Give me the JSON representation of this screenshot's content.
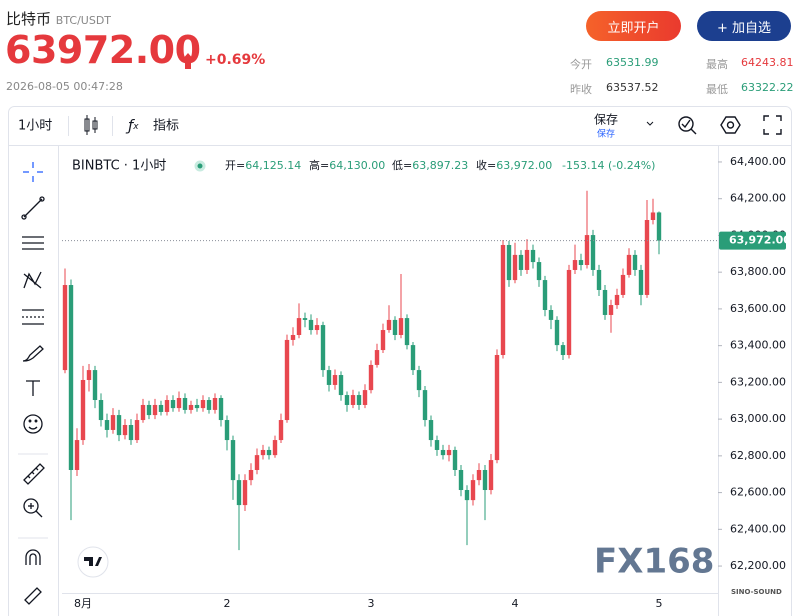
{
  "header": {
    "name": "比特币",
    "pair": "BTC/USDT",
    "price": "63972.00",
    "change": "+0.69%",
    "time": "2026-08-05 00:47:28",
    "buttons": [
      "立即开户",
      "+ 加自选"
    ],
    "stats": [
      {
        "label": "今开",
        "value": "63531.99"
      },
      {
        "label": "最高",
        "value": "64243.81"
      },
      {
        "label": "昨收",
        "value": "63537.52"
      },
      {
        "label": "最低",
        "value": "63322.22"
      }
    ]
  },
  "toolbar": {
    "interval": "1小时",
    "indicators": "指标",
    "save": "保存",
    "save_sub": "保存"
  },
  "chart_data": {
    "type": "candlestick",
    "symbol": "BINBTC · 1小时",
    "legend_info": [
      {
        "label": "开=",
        "value": "64,125.14"
      },
      {
        "label": "高=",
        "value": "64,130.00"
      },
      {
        "label": "低=",
        "value": "63,897.23"
      },
      {
        "label": "收=",
        "value": "63,972.00"
      }
    ],
    "legend_change": "-153.14 (-0.24%)",
    "up_color": "#e8474f",
    "down_color": "#2a9d78",
    "categories": [
      null,
      null,
      null,
      "8月",
      null,
      null,
      null,
      null,
      null,
      null,
      null,
      null,
      null,
      null,
      null,
      null,
      null,
      null,
      null,
      null,
      null,
      null,
      null,
      null,
      null,
      null,
      null,
      "2",
      null,
      null,
      null,
      null,
      null,
      null,
      null,
      null,
      null,
      null,
      null,
      null,
      null,
      null,
      null,
      null,
      null,
      null,
      null,
      null,
      null,
      null,
      null,
      "3",
      null,
      null,
      null,
      null,
      null,
      null,
      null,
      null,
      null,
      null,
      null,
      null,
      null,
      null,
      null,
      null,
      null,
      null,
      null,
      null,
      null,
      null,
      null,
      "4",
      null,
      null,
      null,
      null,
      null,
      null,
      null,
      null,
      null,
      null,
      null,
      null,
      null,
      null,
      null,
      null,
      null,
      null,
      null,
      null,
      null,
      null,
      null,
      "5"
    ],
    "open": [
      63267,
      63730,
      62723,
      62886,
      63213,
      63267,
      63104,
      62995,
      62941,
      63022,
      62913,
      62968,
      62886,
      62995,
      63077,
      63022,
      63077,
      63039,
      63104,
      63060,
      63115,
      63050,
      63077,
      63060,
      63104,
      63050,
      63115,
      62995,
      62886,
      62668,
      62532,
      62668,
      62723,
      62804,
      62832,
      62804,
      62886,
      62995,
      63431,
      63458,
      63550,
      63540,
      63485,
      63512,
      63267,
      63186,
      63240,
      63131,
      63077,
      63131,
      63077,
      63158,
      63295,
      63376,
      63485,
      63540,
      63458,
      63550,
      63403,
      63267,
      63158,
      62995,
      62886,
      62832,
      62804,
      62832,
      62723,
      62614,
      62559,
      62668,
      62723,
      62614,
      62777,
      63349,
      63948,
      63757,
      63894,
      63812,
      63921,
      63855,
      63757,
      63594,
      63540,
      63403,
      63349,
      63812,
      63866,
      63839,
      64002,
      63812,
      63703,
      63567,
      63621,
      63676,
      63785,
      63894,
      63812,
      63676,
      64084,
      64125.14
    ],
    "high": [
      63820,
      63760,
      62950,
      63290,
      63300,
      63290,
      63140,
      63030,
      63060,
      63050,
      63000,
      63000,
      63030,
      63110,
      63100,
      63110,
      63100,
      63130,
      63130,
      63150,
      63140,
      63100,
      63110,
      63130,
      63120,
      63140,
      63130,
      63020,
      62910,
      62700,
      62700,
      62760,
      62840,
      62860,
      62850,
      62910,
      63030,
      63460,
      63500,
      63630,
      63580,
      63570,
      63550,
      63530,
      63290,
      63270,
      63260,
      63150,
      63160,
      63150,
      63190,
      63320,
      63410,
      63520,
      63620,
      63560,
      63790,
      63570,
      63420,
      63290,
      63180,
      63020,
      62910,
      62860,
      62860,
      62850,
      62750,
      62640,
      62700,
      62760,
      62750,
      62810,
      63380,
      63975,
      63970,
      63960,
      63920,
      63980,
      63950,
      63880,
      63780,
      63620,
      63560,
      63420,
      63840,
      63950,
      63900,
      64243,
      64030,
      63840,
      63730,
      63650,
      63710,
      63820,
      63930,
      63920,
      63840,
      64193,
      64200,
      64130.0
    ],
    "low": [
      63250,
      62450,
      62690,
      62860,
      63150,
      63060,
      62960,
      62900,
      62920,
      62880,
      62890,
      62860,
      62870,
      62980,
      63000,
      63000,
      63020,
      63020,
      63040,
      63040,
      63030,
      63030,
      63040,
      63040,
      63030,
      63030,
      62960,
      62830,
      62560,
      62287,
      62500,
      62640,
      62700,
      62780,
      62780,
      62790,
      62870,
      62980,
      63400,
      63440,
      63500,
      63460,
      63460,
      63230,
      63150,
      63160,
      63100,
      63040,
      63060,
      63050,
      63060,
      63140,
      63280,
      63360,
      63470,
      63430,
      63440,
      63380,
      63240,
      63120,
      62960,
      62850,
      62800,
      62780,
      62770,
      62690,
      62580,
      62314,
      62530,
      62640,
      62450,
      62590,
      62760,
      63330,
      63720,
      63740,
      63780,
      63790,
      63820,
      63720,
      63560,
      63490,
      63370,
      63322,
      63330,
      63790,
      63810,
      63820,
      63780,
      63670,
      63540,
      63470,
      63600,
      63660,
      63770,
      63780,
      63620,
      63660,
      64060,
      63897.23
    ],
    "close": [
      63730,
      62723,
      62886,
      63213,
      63267,
      63104,
      62995,
      62941,
      63022,
      62913,
      62968,
      62886,
      62995,
      63077,
      63022,
      63077,
      63039,
      63104,
      63060,
      63115,
      63050,
      63077,
      63060,
      63104,
      63050,
      63115,
      62995,
      62886,
      62668,
      62532,
      62668,
      62723,
      62804,
      62832,
      62804,
      62886,
      62995,
      63431,
      63458,
      63550,
      63540,
      63485,
      63512,
      63267,
      63186,
      63240,
      63131,
      63077,
      63131,
      63077,
      63158,
      63295,
      63376,
      63485,
      63540,
      63458,
      63550,
      63403,
      63267,
      63158,
      62995,
      62886,
      62832,
      62804,
      62832,
      62723,
      62614,
      62559,
      62668,
      62723,
      62614,
      62777,
      63349,
      63948,
      63757,
      63894,
      63812,
      63921,
      63855,
      63757,
      63594,
      63540,
      63403,
      63349,
      63812,
      63866,
      63839,
      64002,
      63812,
      63703,
      63567,
      63621,
      63676,
      63785,
      63894,
      63812,
      63676,
      64084,
      64125,
      63972.0
    ],
    "ylim": [
      62037,
      64476
    ],
    "yticks": [
      {
        "value": 62200,
        "label": "62,200.00"
      },
      {
        "value": 62400,
        "label": "62,400.00"
      },
      {
        "value": 62600,
        "label": "62,600.00"
      },
      {
        "value": 62800,
        "label": "62,800.00"
      },
      {
        "value": 63000,
        "label": "63,000.00"
      },
      {
        "value": 63200,
        "label": "63,200.00"
      },
      {
        "value": 63400,
        "label": "63,400.00"
      },
      {
        "value": 63600,
        "label": "63,600.00"
      },
      {
        "value": 63800,
        "label": "63,800.00"
      },
      {
        "value": 64000,
        "label": "64,000.00"
      },
      {
        "value": 64200,
        "label": "64,200.00"
      },
      {
        "value": 64400,
        "label": "64,400.00"
      }
    ],
    "last_price": {
      "value": 63972,
      "label": "63,972.00"
    },
    "watermarks": [
      "FX168",
      "SINO-SOUND"
    ]
  }
}
